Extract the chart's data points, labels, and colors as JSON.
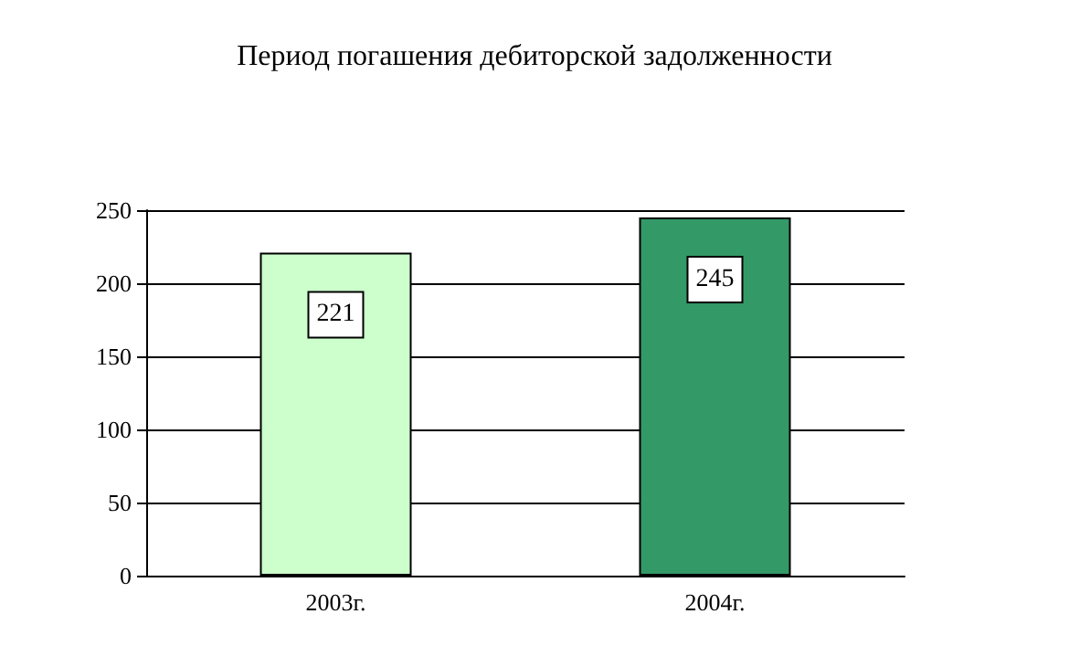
{
  "chart_data": {
    "type": "bar",
    "title": "Период погашения дебиторской задолженности",
    "categories": [
      "2003г.",
      "2004г."
    ],
    "values": [
      221,
      245
    ],
    "colors": [
      "#ccffcc",
      "#339966"
    ],
    "ylim": [
      0,
      250
    ],
    "yticks": [
      0,
      50,
      100,
      150,
      200,
      250
    ],
    "grid": "y",
    "data_labels": true
  }
}
